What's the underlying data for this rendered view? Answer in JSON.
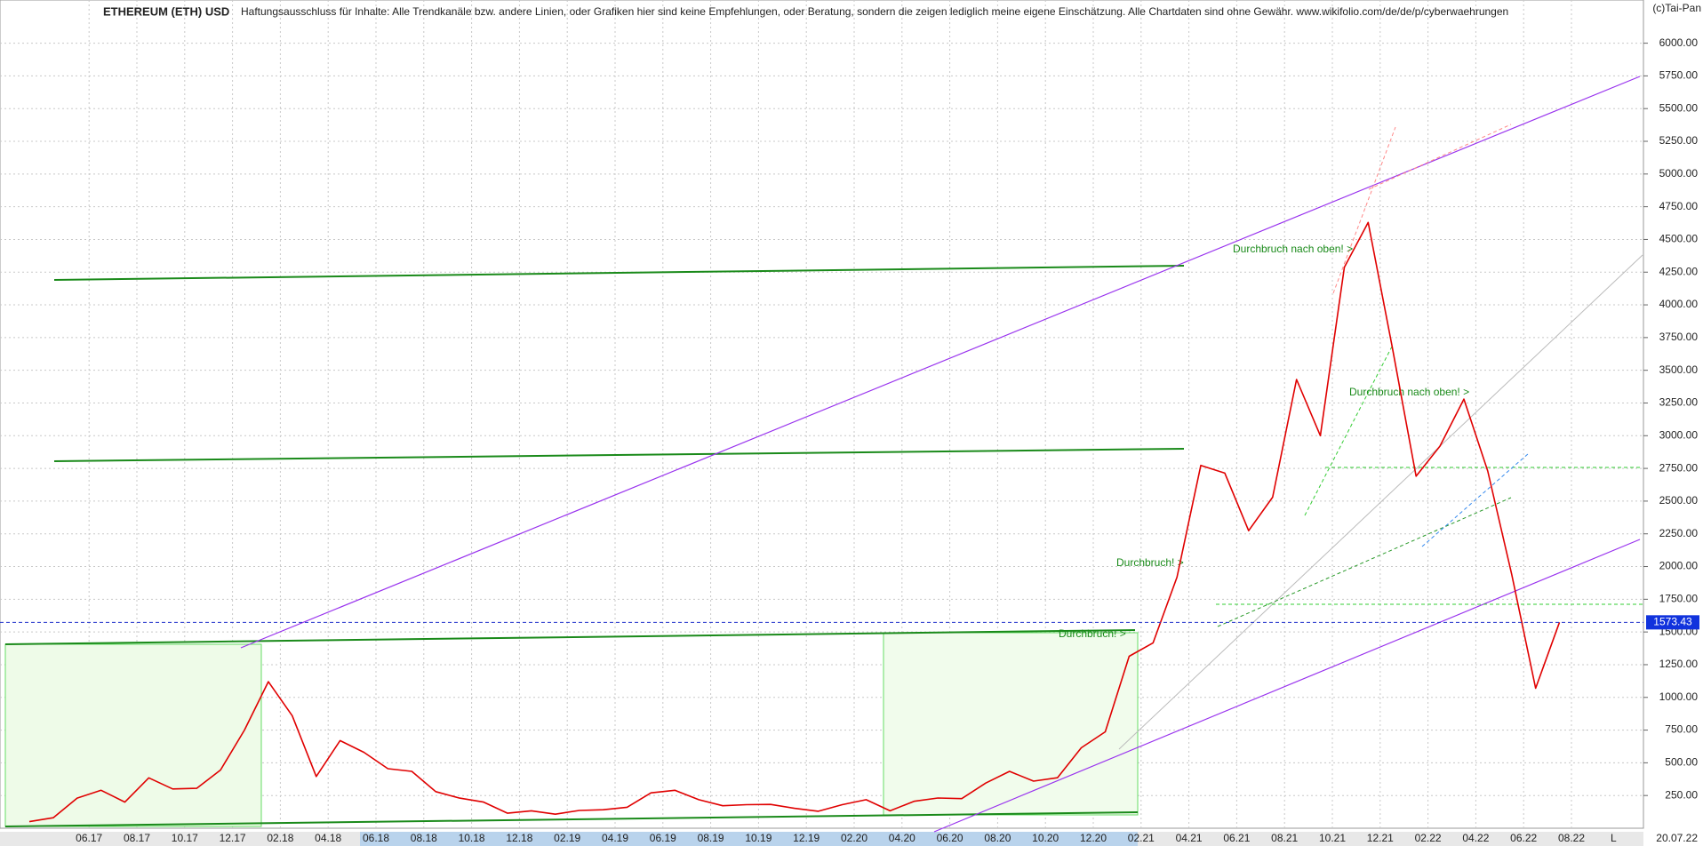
{
  "chart_data": {
    "type": "line",
    "title": "ETHEREUM (ETH) USD",
    "subtitle": "Haftungsausschluss für Inhalte: Alle Trendkanäle bzw. andere Linien, oder Grafiken hier sind keine Empfehlungen, oder Beratung, sondern die zeigen lediglich meine eigene Einschätzung. Alle Chartdaten sind ohne Gewähr.  www.wikifolio.com/de/de/p/cyberwaehrungen",
    "source": "(c)Tai-Pan",
    "categories": [
      null,
      null,
      null,
      "06.17",
      null,
      "08.17",
      null,
      "10.17",
      null,
      "12.17",
      null,
      "02.18",
      null,
      "04.18",
      null,
      "06.18",
      null,
      "08.18",
      null,
      "10.18",
      null,
      "12.18",
      null,
      "02.19",
      null,
      "04.19",
      null,
      "06.19",
      null,
      "08.19",
      null,
      "10.19",
      null,
      "12.19",
      null,
      "02.20",
      null,
      "04.20",
      null,
      "06.20",
      null,
      "08.20",
      null,
      "10.20",
      null,
      "12.20",
      null,
      "02.21",
      null,
      "04.21",
      null,
      "06.21",
      null,
      "08.21",
      null,
      "10.21",
      null,
      "12.21",
      null,
      "02.22",
      null,
      "04.22",
      null,
      "06.22",
      null,
      "08.22"
    ],
    "values": [
      50,
      80,
      230,
      290,
      200,
      385,
      300,
      305,
      445,
      750,
      1120,
      860,
      395,
      670,
      580,
      455,
      435,
      280,
      230,
      200,
      115,
      133,
      107,
      136,
      141,
      160,
      270,
      290,
      218,
      172,
      180,
      182,
      152,
      130,
      180,
      218,
      133,
      206,
      231,
      226,
      345,
      435,
      360,
      386,
      615,
      737,
      1314,
      1417,
      1919,
      2773,
      2714,
      2274,
      2530,
      3430,
      3000,
      4288,
      4630,
      3680,
      2690,
      2920,
      3280,
      2730,
      1940,
      1070,
      1573.43,
      null
    ],
    "color": "#e00000",
    "ylim": [
      0,
      6330
    ],
    "yticks": [
      {
        "value": 250,
        "label": "250.00"
      },
      {
        "value": 500,
        "label": "500.00"
      },
      {
        "value": 750,
        "label": "750.00"
      },
      {
        "value": 1000,
        "label": "1000.00"
      },
      {
        "value": 1250,
        "label": "1250.00"
      },
      {
        "value": 1500,
        "label": "1500.00"
      },
      {
        "value": 1750,
        "label": "1750.00"
      },
      {
        "value": 2000,
        "label": "2000.00"
      },
      {
        "value": 2250,
        "label": "2250.00"
      },
      {
        "value": 2500,
        "label": "2500.00"
      },
      {
        "value": 2750,
        "label": "2750.00"
      },
      {
        "value": 3000,
        "label": "3000.00"
      },
      {
        "value": 3250,
        "label": "3250.00"
      },
      {
        "value": 3500,
        "label": "3500.00"
      },
      {
        "value": 3750,
        "label": "3750.00"
      },
      {
        "value": 4000,
        "label": "4000.00"
      },
      {
        "value": 4250,
        "label": "4250.00"
      },
      {
        "value": 4500,
        "label": "4500.00"
      },
      {
        "value": 4750,
        "label": "4750.00"
      },
      {
        "value": 5000,
        "label": "5000.00"
      },
      {
        "value": 5250,
        "label": "5250.00"
      },
      {
        "value": 5500,
        "label": "5500.00"
      },
      {
        "value": 5750,
        "label": "5750.00"
      },
      {
        "value": 6000,
        "label": "6000.00"
      }
    ],
    "grid": true,
    "last_value": 1573.43,
    "last_date": "20.07.22",
    "scale_mode": "L",
    "annotations": [
      "Durchbruch nach oben! >",
      "Durchbruch nach oben! >",
      "Durchbruch! >",
      "Durchbruch! >"
    ]
  }
}
